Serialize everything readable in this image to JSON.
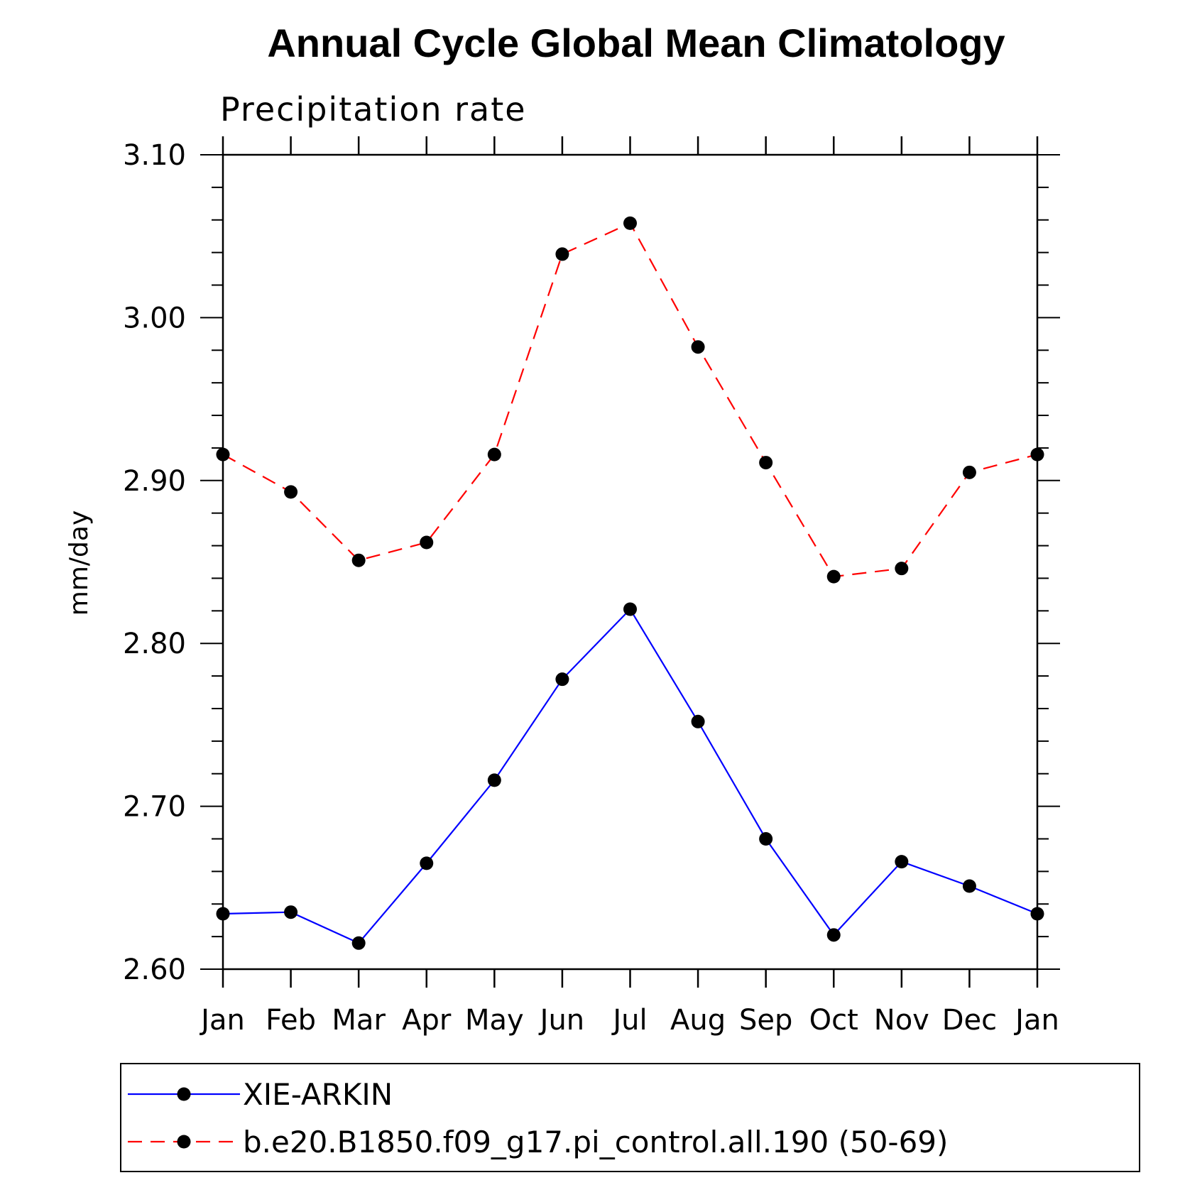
{
  "chart_data": {
    "type": "line",
    "title": "Annual Cycle Global Mean Climatology",
    "subtitle": "Precipitation rate",
    "xlabel": "",
    "ylabel": "mm/day",
    "categories": [
      "Jan",
      "Feb",
      "Mar",
      "Apr",
      "May",
      "Jun",
      "Jul",
      "Aug",
      "Sep",
      "Oct",
      "Nov",
      "Dec",
      "Jan"
    ],
    "ylim": [
      2.6,
      3.1
    ],
    "yticks": [
      "2.60",
      "2.70",
      "2.80",
      "2.90",
      "3.00",
      "3.10"
    ],
    "ytick_values": [
      2.6,
      2.7,
      2.8,
      2.9,
      3.0,
      3.1
    ],
    "series": [
      {
        "name": "XIE-ARKIN",
        "color": "#0000ff",
        "style": "solid",
        "values": [
          2.634,
          2.635,
          2.616,
          2.665,
          2.716,
          2.778,
          2.821,
          2.752,
          2.68,
          2.621,
          2.666,
          2.651,
          2.634
        ]
      },
      {
        "name": "b.e20.B1850.f09_g17.pi_control.all.190 (50-69)",
        "color": "#ff0000",
        "style": "dashed",
        "values": [
          2.916,
          2.893,
          2.851,
          2.862,
          2.916,
          3.039,
          3.058,
          2.982,
          2.911,
          2.841,
          2.846,
          2.905,
          2.916
        ]
      }
    ],
    "grid": false,
    "legend_position": "bottom"
  }
}
